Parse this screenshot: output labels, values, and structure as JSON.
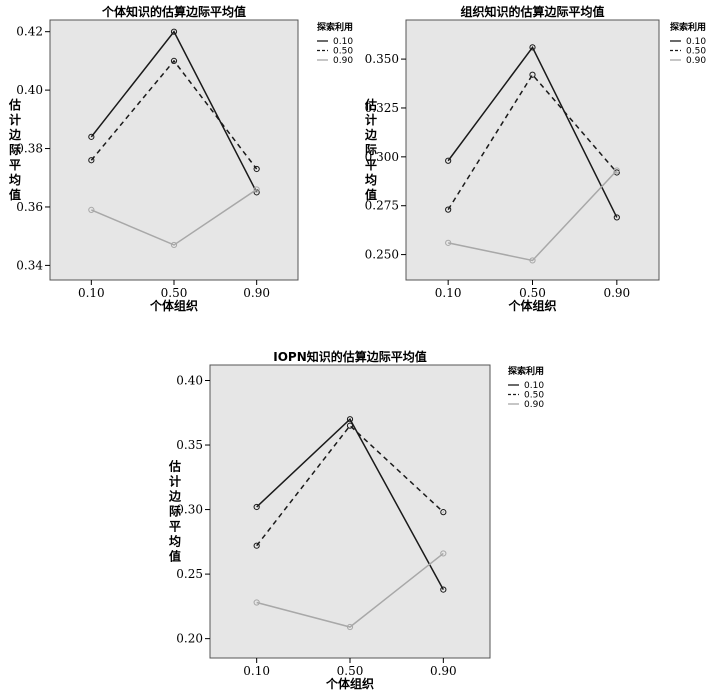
{
  "chart_data": [
    {
      "type": "line",
      "title": "个体知识的估算边际平均值",
      "xlabel": "个体组织",
      "ylabel": "估计边际平均值",
      "categories": [
        "0.10",
        "0.50",
        "0.90"
      ],
      "ylim": [
        0.335,
        0.424
      ],
      "yticks": [
        "0.34",
        "0.36",
        "0.38",
        "0.40",
        "0.42"
      ],
      "legend_title": "探索利用",
      "series": [
        {
          "name": "0.10",
          "values": [
            0.384,
            0.42,
            0.365
          ]
        },
        {
          "name": "0.50",
          "values": [
            0.376,
            0.41,
            0.373
          ]
        },
        {
          "name": "0.90",
          "values": [
            0.359,
            0.347,
            0.366
          ]
        }
      ]
    },
    {
      "type": "line",
      "title": "组织知识的估算边际平均值",
      "xlabel": "个体组织",
      "ylabel": "估计边际平均值",
      "categories": [
        "0.10",
        "0.50",
        "0.90"
      ],
      "ylim": [
        0.237,
        0.37
      ],
      "yticks": [
        "0.250",
        "0.275",
        "0.300",
        "0.325",
        "0.350"
      ],
      "legend_title": "探索利用",
      "series": [
        {
          "name": "0.10",
          "values": [
            0.298,
            0.356,
            0.269
          ]
        },
        {
          "name": "0.50",
          "values": [
            0.273,
            0.342,
            0.292
          ]
        },
        {
          "name": "0.90",
          "values": [
            0.256,
            0.247,
            0.293
          ]
        }
      ]
    },
    {
      "type": "line",
      "title": "IOPN知识的估算边际平均值",
      "xlabel": "个体组织",
      "ylabel": "估计边际平均值",
      "categories": [
        "0.10",
        "0.50",
        "0.90"
      ],
      "ylim": [
        0.185,
        0.412
      ],
      "yticks": [
        "0.20",
        "0.25",
        "0.30",
        "0.35",
        "0.40"
      ],
      "legend_title": "探索利用",
      "series": [
        {
          "name": "0.10",
          "values": [
            0.302,
            0.37,
            0.238
          ]
        },
        {
          "name": "0.50",
          "values": [
            0.272,
            0.365,
            0.298
          ]
        },
        {
          "name": "0.90",
          "values": [
            0.228,
            0.209,
            0.266
          ]
        }
      ]
    }
  ]
}
